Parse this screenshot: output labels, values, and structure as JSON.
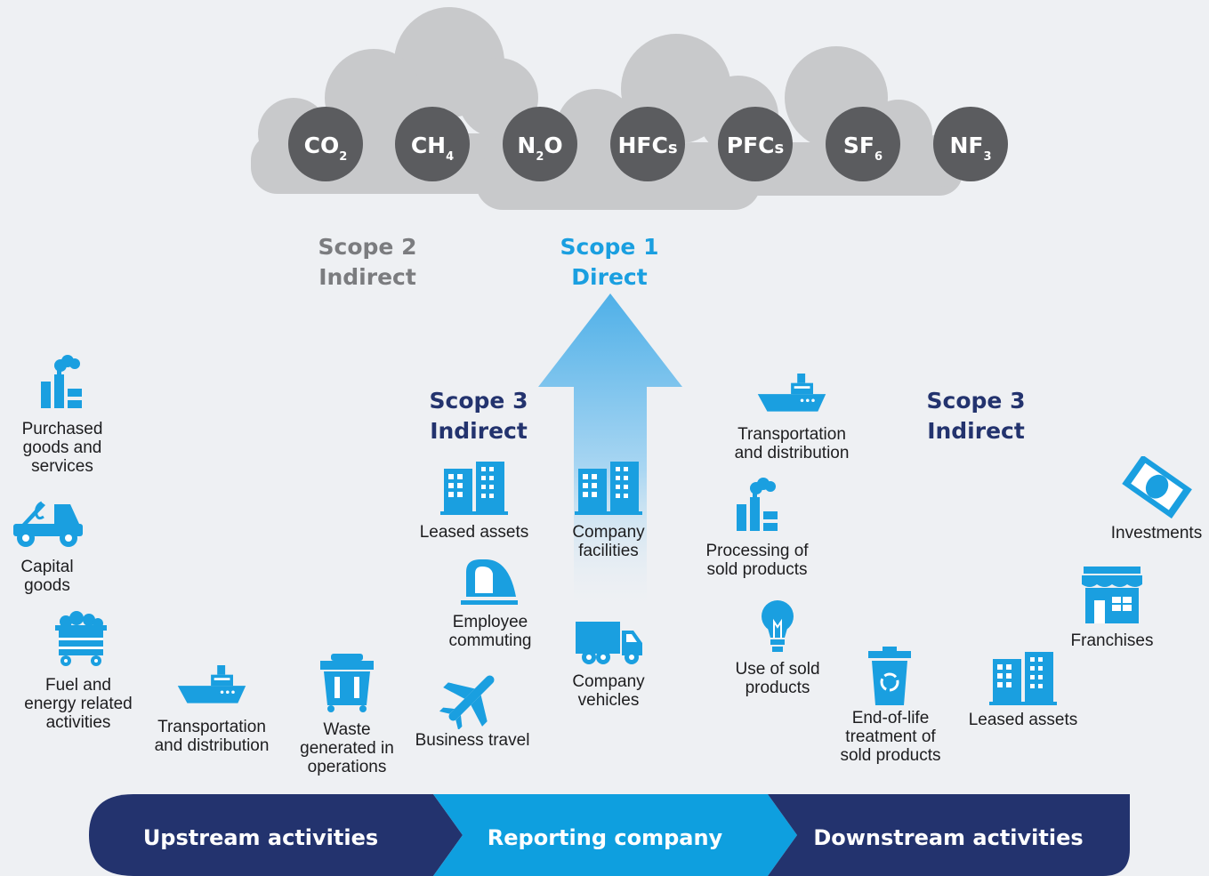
{
  "gases": [
    {
      "text": "CO",
      "sub": "2"
    },
    {
      "text": "CH",
      "sub": "4"
    },
    {
      "text": "N",
      "sub": "2",
      "after": "O"
    },
    {
      "text": "HFC",
      "suffix": "s"
    },
    {
      "text": "PFC",
      "suffix": "s"
    },
    {
      "text": "SF",
      "sub": "6"
    },
    {
      "text": "NF",
      "sub": "3"
    }
  ],
  "scope2": {
    "title": "Scope 2",
    "subtitle": "Indirect"
  },
  "scope1": {
    "title": "Scope 1",
    "subtitle": "Direct"
  },
  "scope3_upstream": {
    "title": "Scope 3",
    "subtitle": "Indirect"
  },
  "scope3_downstream": {
    "title": "Scope 3",
    "subtitle": "Indirect"
  },
  "items": [
    {
      "label": "Purchased\ngoods and\nservices"
    },
    {
      "label": "Capital\ngoods"
    },
    {
      "label": "Fuel and\nenergy related\nactivities"
    },
    {
      "label": "Transportation\nand distribution"
    },
    {
      "label": "Waste\ngenerated in\noperations"
    },
    {
      "label": "Business travel"
    },
    {
      "label": "Employee\ncommuting"
    },
    {
      "label": "Leased assets"
    },
    {
      "label": "Company\nfacilities"
    },
    {
      "label": "Company\nvehicles"
    },
    {
      "label": "Transportation\nand distribution"
    },
    {
      "label": "Processing of\nsold products"
    },
    {
      "label": "Use of sold\nproducts"
    },
    {
      "label": "End-of-life\ntreatment of\nsold products"
    },
    {
      "label": "Leased assets"
    },
    {
      "label": "Franchises"
    },
    {
      "label": "Investments"
    }
  ],
  "bar": {
    "upstream": "Upstream activities",
    "reporting": "Reporting company",
    "downstream": "Downstream activities"
  }
}
